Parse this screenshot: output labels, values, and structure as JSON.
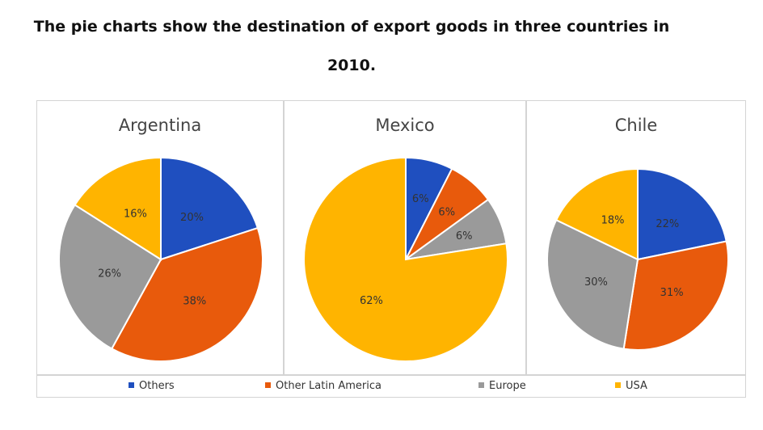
{
  "heading": {
    "line1": "The pie charts show the destination of export goods in three countries in",
    "line2": "2010."
  },
  "colors": {
    "Others": "#1f4fbf",
    "Other Latin America": "#e85a0c",
    "Europe": "#9a9a9a",
    "USA": "#ffb400"
  },
  "legend": [
    "Others",
    "Other Latin America",
    "Europe",
    "USA"
  ],
  "chart_data": [
    {
      "type": "pie",
      "title": "Argentina",
      "categories": [
        "Others",
        "Other Latin America",
        "Europe",
        "USA"
      ],
      "values": [
        20,
        38,
        26,
        16
      ],
      "labels": [
        "20%",
        "38%",
        "26%",
        "16%"
      ]
    },
    {
      "type": "pie",
      "title": "Mexico",
      "categories": [
        "Others",
        "Other Latin America",
        "Europe",
        "USA"
      ],
      "values": [
        6,
        6,
        6,
        62
      ],
      "labels": [
        "6%",
        "6%",
        "6%",
        "62%"
      ]
    },
    {
      "type": "pie",
      "title": "Chile",
      "categories": [
        "Others",
        "Other Latin America",
        "Europe",
        "USA"
      ],
      "values": [
        22,
        31,
        30,
        18
      ],
      "labels": [
        "22%",
        "31%",
        "30%",
        "18%"
      ]
    }
  ]
}
